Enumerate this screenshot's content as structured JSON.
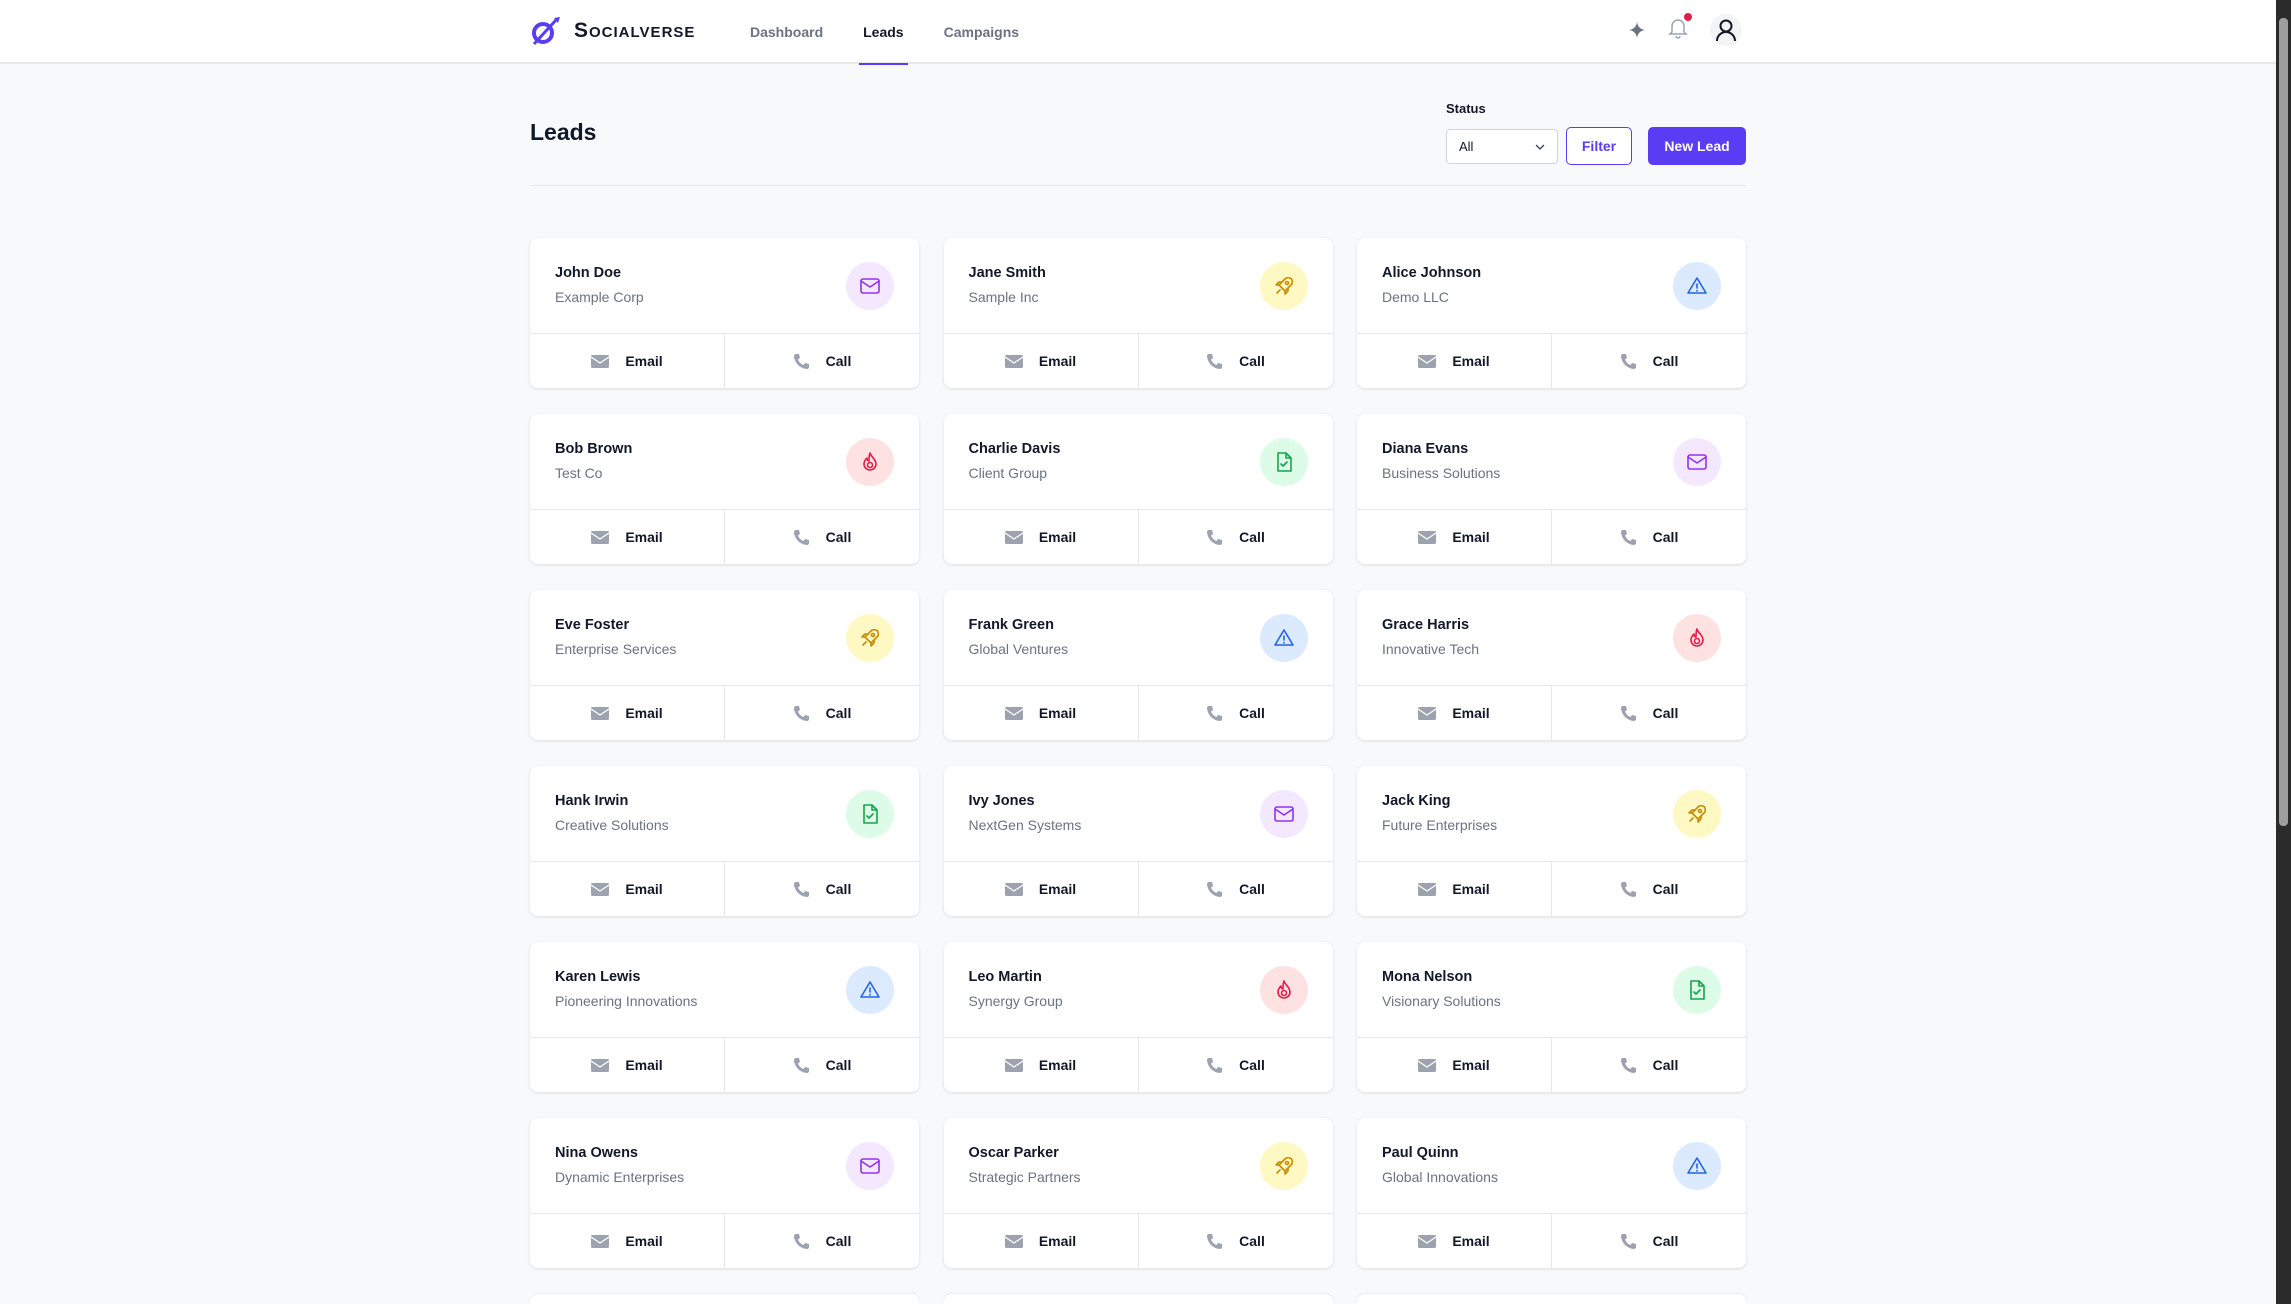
{
  "header": {
    "brand": "Socialverse",
    "nav": [
      {
        "label": "Dashboard"
      },
      {
        "label": "Leads"
      },
      {
        "label": "Campaigns"
      }
    ]
  },
  "page": {
    "title": "Leads",
    "status_label": "Status",
    "status_value": "All",
    "filter_label": "Filter",
    "new_lead_label": "New Lead"
  },
  "actions": {
    "email": "Email",
    "call": "Call"
  },
  "colors": {
    "accent": "#5b3cf5"
  },
  "leads": [
    {
      "name": "John Doe",
      "company": "Example Corp",
      "icon": "mail"
    },
    {
      "name": "Jane Smith",
      "company": "Sample Inc",
      "icon": "rocket"
    },
    {
      "name": "Alice Johnson",
      "company": "Demo LLC",
      "icon": "alert"
    },
    {
      "name": "Bob Brown",
      "company": "Test Co",
      "icon": "fire"
    },
    {
      "name": "Charlie Davis",
      "company": "Client Group",
      "icon": "file"
    },
    {
      "name": "Diana Evans",
      "company": "Business Solutions",
      "icon": "mail"
    },
    {
      "name": "Eve Foster",
      "company": "Enterprise Services",
      "icon": "rocket"
    },
    {
      "name": "Frank Green",
      "company": "Global Ventures",
      "icon": "alert"
    },
    {
      "name": "Grace Harris",
      "company": "Innovative Tech",
      "icon": "fire"
    },
    {
      "name": "Hank Irwin",
      "company": "Creative Solutions",
      "icon": "file"
    },
    {
      "name": "Ivy Jones",
      "company": "NextGen Systems",
      "icon": "mail"
    },
    {
      "name": "Jack King",
      "company": "Future Enterprises",
      "icon": "rocket"
    },
    {
      "name": "Karen Lewis",
      "company": "Pioneering Innovations",
      "icon": "alert"
    },
    {
      "name": "Leo Martin",
      "company": "Synergy Group",
      "icon": "fire"
    },
    {
      "name": "Mona Nelson",
      "company": "Visionary Solutions",
      "icon": "file"
    },
    {
      "name": "Nina Owens",
      "company": "Dynamic Enterprises",
      "icon": "mail"
    },
    {
      "name": "Oscar Parker",
      "company": "Strategic Partners",
      "icon": "rocket"
    },
    {
      "name": "Paul Quinn",
      "company": "Global Innovations",
      "icon": "alert"
    }
  ]
}
